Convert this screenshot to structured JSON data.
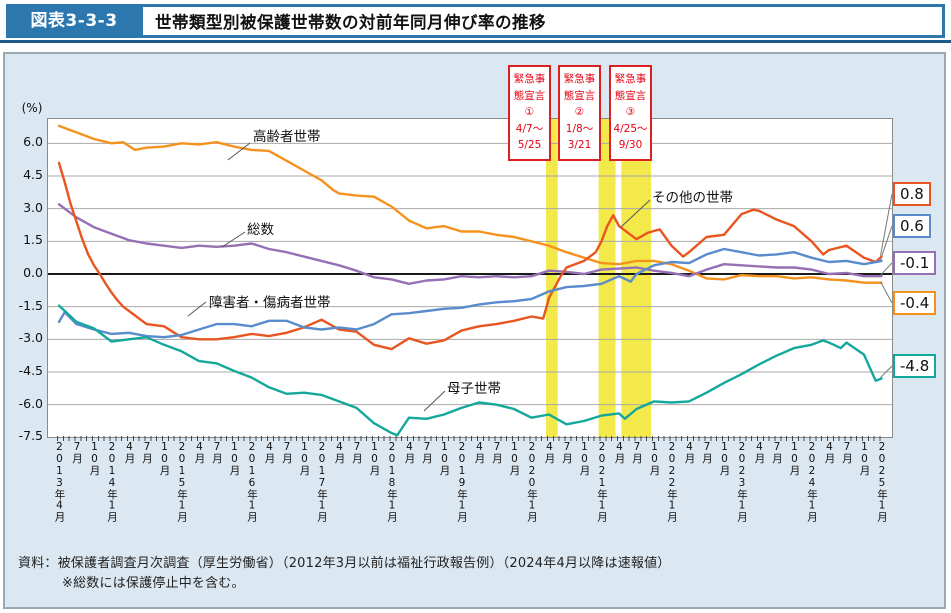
{
  "header": {
    "tag": "図表3-3-3",
    "title": "世帯類型別被保護世帯数の対前年同月伸び率の推移"
  },
  "footer": {
    "source": "資料：被保護者調査月次調査（厚生労働省）（2012年3月以前は福祉行政報告例）（2024年4月以降は速報値）",
    "note": "※総数には保護停止中を含む。"
  },
  "chart_data": {
    "type": "line",
    "title": "世帯類型別被保護世帯数の対前年同月伸び率の推移",
    "ylabel": "(%)",
    "ylim": [
      -7.5,
      7.0
    ],
    "yticks": [
      6.0,
      4.5,
      3.0,
      1.5,
      0.0,
      -1.5,
      -3.0,
      -4.5,
      -6.0,
      -7.5
    ],
    "grid": true,
    "x_unit": "months since 2013-04",
    "x_range": [
      "2013年4月",
      "2025年1月"
    ],
    "x_tick_labels": [
      "2013年4月",
      "7月",
      "10月",
      "2014年1月",
      "4月",
      "7月",
      "10月",
      "2015年1月",
      "4月",
      "7月",
      "10月",
      "2016年1月",
      "4月",
      "7月",
      "10月",
      "2017年1月",
      "4月",
      "7月",
      "10月",
      "2018年1月",
      "4月",
      "7月",
      "10月",
      "2019年1月",
      "4月",
      "7月",
      "10月",
      "2020年1月",
      "4月",
      "7月",
      "10月",
      "2021年1月",
      "4月",
      "7月",
      "10月",
      "2022年1月",
      "4月",
      "7月",
      "10月",
      "2023年1月",
      "4月",
      "7月",
      "10月",
      "2024年1月",
      "4月",
      "7月",
      "10月",
      "2025年1月"
    ],
    "x_tick_months": [
      0,
      3,
      6,
      9,
      12,
      15,
      18,
      21,
      24,
      27,
      30,
      33,
      36,
      39,
      42,
      45,
      48,
      51,
      54,
      57,
      60,
      63,
      66,
      69,
      72,
      75,
      78,
      81,
      84,
      87,
      90,
      93,
      96,
      99,
      102,
      105,
      108,
      111,
      114,
      117,
      120,
      123,
      126,
      129,
      132,
      135,
      138,
      141
    ],
    "bands": [
      {
        "from_month": 83.5,
        "to_month": 85.5,
        "color": "#F3E94B"
      },
      {
        "from_month": 92.5,
        "to_month": 95.4,
        "color": "#F3E94B"
      },
      {
        "from_month": 96.4,
        "to_month": 101.5,
        "color": "#F3E94B"
      }
    ],
    "annotations": [
      {
        "lines": [
          "緊急事",
          "態宣言",
          "①",
          "4/7～",
          "5/25"
        ]
      },
      {
        "lines": [
          "緊急事",
          "態宣言",
          "②",
          "1/8～",
          "3/21"
        ]
      },
      {
        "lines": [
          "緊急事",
          "態宣言",
          "③",
          "4/25～",
          "9/30"
        ]
      }
    ],
    "series": [
      {
        "name": "高齢者世帯",
        "color": "#F5921E",
        "end_label": "-0.4",
        "points": [
          [
            0,
            6.8
          ],
          [
            3,
            6.5
          ],
          [
            6,
            6.2
          ],
          [
            9,
            6.0
          ],
          [
            11,
            6.05
          ],
          [
            13,
            5.7
          ],
          [
            15,
            5.8
          ],
          [
            18,
            5.85
          ],
          [
            21,
            6.0
          ],
          [
            24,
            5.95
          ],
          [
            27,
            6.05
          ],
          [
            30,
            5.85
          ],
          [
            33,
            5.7
          ],
          [
            36,
            5.65
          ],
          [
            39,
            5.2
          ],
          [
            42,
            4.75
          ],
          [
            45,
            4.3
          ],
          [
            47,
            3.85
          ],
          [
            48,
            3.7
          ],
          [
            51,
            3.6
          ],
          [
            54,
            3.55
          ],
          [
            57,
            3.1
          ],
          [
            60,
            2.45
          ],
          [
            63,
            2.1
          ],
          [
            66,
            2.2
          ],
          [
            69,
            1.95
          ],
          [
            72,
            1.95
          ],
          [
            75,
            1.8
          ],
          [
            78,
            1.7
          ],
          [
            81,
            1.5
          ],
          [
            84,
            1.3
          ],
          [
            87,
            1.0
          ],
          [
            90,
            0.75
          ],
          [
            93,
            0.5
          ],
          [
            96,
            0.45
          ],
          [
            99,
            0.6
          ],
          [
            102,
            0.6
          ],
          [
            105,
            0.45
          ],
          [
            108,
            0.15
          ],
          [
            111,
            -0.2
          ],
          [
            114,
            -0.25
          ],
          [
            117,
            -0.05
          ],
          [
            120,
            -0.1
          ],
          [
            123,
            -0.1
          ],
          [
            126,
            -0.2
          ],
          [
            129,
            -0.15
          ],
          [
            132,
            -0.25
          ],
          [
            135,
            -0.3
          ],
          [
            138,
            -0.4
          ],
          [
            141,
            -0.4
          ]
        ]
      },
      {
        "name": "総数",
        "color": "#9670B4",
        "end_label": "-0.1",
        "points": [
          [
            0,
            3.2
          ],
          [
            3,
            2.6
          ],
          [
            6,
            2.15
          ],
          [
            9,
            1.85
          ],
          [
            12,
            1.55
          ],
          [
            15,
            1.4
          ],
          [
            18,
            1.3
          ],
          [
            21,
            1.2
          ],
          [
            24,
            1.3
          ],
          [
            27,
            1.25
          ],
          [
            30,
            1.3
          ],
          [
            33,
            1.4
          ],
          [
            36,
            1.15
          ],
          [
            39,
            1.0
          ],
          [
            42,
            0.8
          ],
          [
            45,
            0.6
          ],
          [
            48,
            0.4
          ],
          [
            51,
            0.15
          ],
          [
            54,
            -0.15
          ],
          [
            57,
            -0.25
          ],
          [
            60,
            -0.45
          ],
          [
            63,
            -0.3
          ],
          [
            66,
            -0.25
          ],
          [
            69,
            -0.1
          ],
          [
            72,
            -0.15
          ],
          [
            75,
            -0.1
          ],
          [
            78,
            -0.15
          ],
          [
            81,
            -0.1
          ],
          [
            84,
            0.15
          ],
          [
            87,
            0.1
          ],
          [
            90,
            0.0
          ],
          [
            93,
            0.2
          ],
          [
            96,
            0.25
          ],
          [
            99,
            0.3
          ],
          [
            102,
            0.15
          ],
          [
            105,
            0.05
          ],
          [
            108,
            -0.1
          ],
          [
            111,
            0.2
          ],
          [
            114,
            0.45
          ],
          [
            117,
            0.4
          ],
          [
            120,
            0.35
          ],
          [
            123,
            0.3
          ],
          [
            126,
            0.3
          ],
          [
            129,
            0.2
          ],
          [
            132,
            0.0
          ],
          [
            135,
            0.05
          ],
          [
            138,
            -0.1
          ],
          [
            141,
            -0.1
          ]
        ]
      },
      {
        "name": "その他の世帯",
        "color": "#E95520",
        "end_label": "0.8",
        "points": [
          [
            0,
            5.1
          ],
          [
            1,
            4.2
          ],
          [
            2,
            3.2
          ],
          [
            3,
            2.4
          ],
          [
            4,
            1.6
          ],
          [
            5,
            0.9
          ],
          [
            6,
            0.4
          ],
          [
            7,
            0.0
          ],
          [
            8,
            -0.45
          ],
          [
            9,
            -0.85
          ],
          [
            10,
            -1.2
          ],
          [
            11,
            -1.5
          ],
          [
            12,
            -1.7
          ],
          [
            15,
            -2.3
          ],
          [
            18,
            -2.4
          ],
          [
            21,
            -2.9
          ],
          [
            24,
            -3.0
          ],
          [
            27,
            -3.0
          ],
          [
            30,
            -2.9
          ],
          [
            33,
            -2.75
          ],
          [
            36,
            -2.85
          ],
          [
            39,
            -2.7
          ],
          [
            42,
            -2.45
          ],
          [
            45,
            -2.1
          ],
          [
            48,
            -2.55
          ],
          [
            51,
            -2.65
          ],
          [
            54,
            -3.25
          ],
          [
            57,
            -3.45
          ],
          [
            60,
            -2.95
          ],
          [
            63,
            -3.2
          ],
          [
            66,
            -3.05
          ],
          [
            69,
            -2.6
          ],
          [
            72,
            -2.4
          ],
          [
            75,
            -2.3
          ],
          [
            78,
            -2.15
          ],
          [
            81,
            -1.95
          ],
          [
            83,
            -2.05
          ],
          [
            84,
            -1.1
          ],
          [
            85,
            -0.6
          ],
          [
            86,
            -0.1
          ],
          [
            87,
            0.3
          ],
          [
            90,
            0.6
          ],
          [
            92,
            1.0
          ],
          [
            93,
            1.5
          ],
          [
            94,
            2.2
          ],
          [
            95,
            2.7
          ],
          [
            96,
            2.2
          ],
          [
            99,
            1.6
          ],
          [
            101,
            1.9
          ],
          [
            103,
            2.05
          ],
          [
            105,
            1.3
          ],
          [
            107,
            0.8
          ],
          [
            108,
            1.0
          ],
          [
            111,
            1.7
          ],
          [
            114,
            1.8
          ],
          [
            117,
            2.75
          ],
          [
            119,
            2.95
          ],
          [
            120,
            2.9
          ],
          [
            123,
            2.5
          ],
          [
            126,
            2.2
          ],
          [
            129,
            1.5
          ],
          [
            131,
            0.9
          ],
          [
            132,
            1.1
          ],
          [
            135,
            1.3
          ],
          [
            138,
            0.75
          ],
          [
            140,
            0.55
          ],
          [
            141,
            0.8
          ]
        ]
      },
      {
        "name": "障害者・傷病者世帯",
        "color": "#5A8BCC",
        "end_label": "0.6",
        "points": [
          [
            0,
            -2.2
          ],
          [
            1,
            -1.75
          ],
          [
            3,
            -2.3
          ],
          [
            6,
            -2.55
          ],
          [
            9,
            -2.75
          ],
          [
            12,
            -2.7
          ],
          [
            15,
            -2.85
          ],
          [
            18,
            -2.9
          ],
          [
            21,
            -2.8
          ],
          [
            24,
            -2.55
          ],
          [
            27,
            -2.3
          ],
          [
            30,
            -2.3
          ],
          [
            33,
            -2.4
          ],
          [
            36,
            -2.15
          ],
          [
            39,
            -2.15
          ],
          [
            42,
            -2.45
          ],
          [
            45,
            -2.55
          ],
          [
            48,
            -2.45
          ],
          [
            51,
            -2.55
          ],
          [
            54,
            -2.3
          ],
          [
            57,
            -1.85
          ],
          [
            60,
            -1.8
          ],
          [
            63,
            -1.7
          ],
          [
            66,
            -1.6
          ],
          [
            69,
            -1.55
          ],
          [
            72,
            -1.4
          ],
          [
            75,
            -1.3
          ],
          [
            78,
            -1.25
          ],
          [
            81,
            -1.15
          ],
          [
            84,
            -0.8
          ],
          [
            87,
            -0.6
          ],
          [
            90,
            -0.55
          ],
          [
            93,
            -0.45
          ],
          [
            96,
            -0.1
          ],
          [
            98,
            -0.35
          ],
          [
            99,
            0.0
          ],
          [
            102,
            0.4
          ],
          [
            105,
            0.55
          ],
          [
            108,
            0.5
          ],
          [
            111,
            0.9
          ],
          [
            114,
            1.15
          ],
          [
            117,
            1.0
          ],
          [
            120,
            0.85
          ],
          [
            123,
            0.9
          ],
          [
            126,
            1.0
          ],
          [
            129,
            0.75
          ],
          [
            132,
            0.55
          ],
          [
            135,
            0.6
          ],
          [
            138,
            0.45
          ],
          [
            141,
            0.6
          ]
        ]
      },
      {
        "name": "母子世帯",
        "color": "#14A79B",
        "end_label": "-4.8",
        "points": [
          [
            0,
            -1.45
          ],
          [
            3,
            -2.2
          ],
          [
            6,
            -2.5
          ],
          [
            9,
            -3.1
          ],
          [
            12,
            -3.0
          ],
          [
            15,
            -2.9
          ],
          [
            18,
            -3.25
          ],
          [
            21,
            -3.55
          ],
          [
            24,
            -4.0
          ],
          [
            27,
            -4.1
          ],
          [
            30,
            -4.45
          ],
          [
            33,
            -4.75
          ],
          [
            36,
            -5.2
          ],
          [
            39,
            -5.5
          ],
          [
            42,
            -5.45
          ],
          [
            45,
            -5.55
          ],
          [
            48,
            -5.85
          ],
          [
            51,
            -6.15
          ],
          [
            54,
            -6.85
          ],
          [
            57,
            -7.3
          ],
          [
            58,
            -7.4
          ],
          [
            60,
            -6.6
          ],
          [
            63,
            -6.65
          ],
          [
            66,
            -6.45
          ],
          [
            69,
            -6.15
          ],
          [
            72,
            -5.9
          ],
          [
            75,
            -6.0
          ],
          [
            78,
            -6.2
          ],
          [
            81,
            -6.6
          ],
          [
            84,
            -6.45
          ],
          [
            87,
            -6.9
          ],
          [
            90,
            -6.75
          ],
          [
            93,
            -6.5
          ],
          [
            96,
            -6.4
          ],
          [
            97,
            -6.65
          ],
          [
            99,
            -6.2
          ],
          [
            102,
            -5.85
          ],
          [
            105,
            -5.9
          ],
          [
            108,
            -5.85
          ],
          [
            111,
            -5.45
          ],
          [
            114,
            -5.0
          ],
          [
            117,
            -4.6
          ],
          [
            120,
            -4.15
          ],
          [
            123,
            -3.75
          ],
          [
            126,
            -3.4
          ],
          [
            129,
            -3.25
          ],
          [
            131,
            -3.05
          ],
          [
            132,
            -3.15
          ],
          [
            134,
            -3.4
          ],
          [
            135,
            -3.15
          ],
          [
            138,
            -3.7
          ],
          [
            140,
            -4.9
          ],
          [
            141,
            -4.8
          ]
        ]
      }
    ]
  }
}
